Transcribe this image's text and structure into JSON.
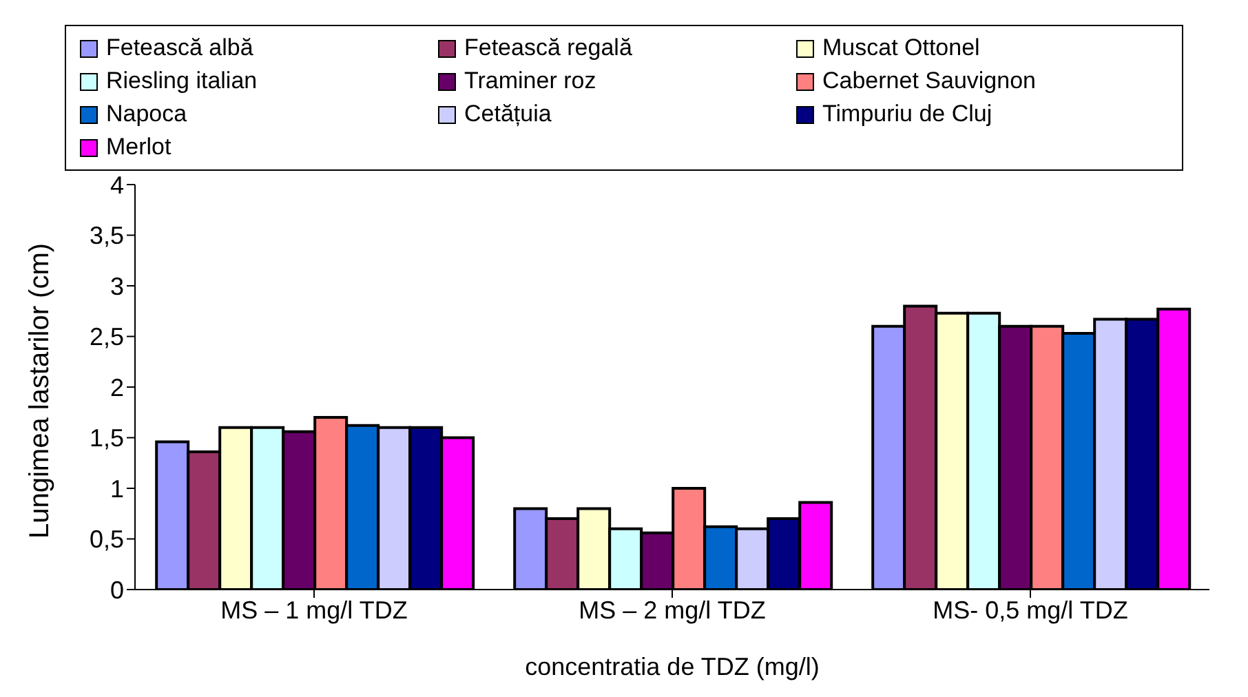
{
  "chart_data": {
    "type": "bar",
    "xlabel": "concentratia de TDZ (mg/l)",
    "ylabel": "Lungimea lastarilor (cm)",
    "categories": [
      "MS – 1 mg/l TDZ",
      "MS – 2 mg/l TDZ",
      "MS- 0,5 mg/l TDZ"
    ],
    "series": [
      {
        "name": "Fetească albă",
        "color": "#9999ff",
        "values": [
          1.46,
          0.8,
          2.6
        ]
      },
      {
        "name": "Fetească regală",
        "color": "#993366",
        "values": [
          1.36,
          0.7,
          2.8
        ]
      },
      {
        "name": "Muscat Ottonel",
        "color": "#ffffcc",
        "values": [
          1.6,
          0.8,
          2.73
        ]
      },
      {
        "name": "Riesling italian",
        "color": "#ccffff",
        "values": [
          1.6,
          0.6,
          2.73
        ]
      },
      {
        "name": "Traminer roz",
        "color": "#660066",
        "values": [
          1.56,
          0.56,
          2.6
        ]
      },
      {
        "name": "Cabernet Sauvignon",
        "color": "#ff8080",
        "values": [
          1.7,
          1.0,
          2.6
        ]
      },
      {
        "name": "Napoca",
        "color": "#0066cc",
        "values": [
          1.62,
          0.62,
          2.53
        ]
      },
      {
        "name": "Cetățuia",
        "color": "#ccccff",
        "values": [
          1.6,
          0.6,
          2.67
        ]
      },
      {
        "name": "Timpuriu de Cluj",
        "color": "#000080",
        "values": [
          1.6,
          0.7,
          2.67
        ]
      },
      {
        "name": "Merlot",
        "color": "#ff00ff",
        "values": [
          1.5,
          0.86,
          2.77
        ]
      }
    ],
    "ylim": [
      0,
      4
    ],
    "yticks": [
      0,
      {
        "value": 0.5,
        "label": "0,5"
      },
      1,
      {
        "value": 1.5,
        "label": "1,5"
      },
      2,
      {
        "value": 2.5,
        "label": "2,5"
      },
      3,
      {
        "value": 3.5,
        "label": "3,5"
      },
      4
    ],
    "grid": false,
    "legend": "top"
  }
}
